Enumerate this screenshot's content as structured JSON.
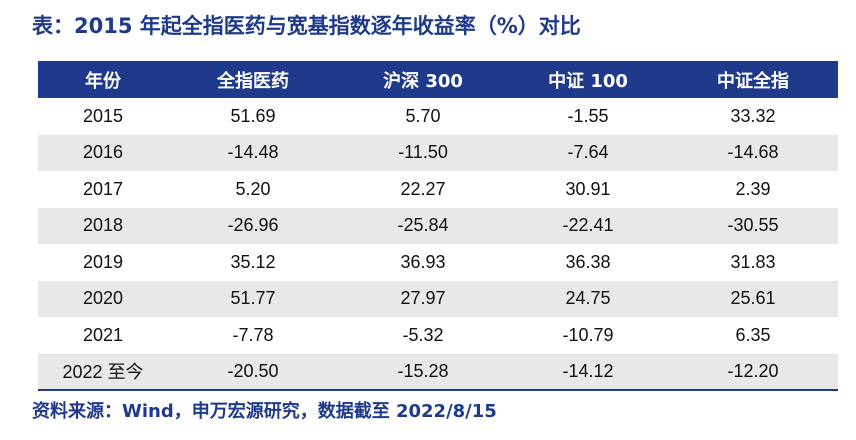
{
  "title": "表：2015 年起全指医药与宽基指数逐年收益率（%）对比",
  "table": {
    "headers": [
      "年份",
      "全指医药",
      "沪深 300",
      "中证 100",
      "中证全指"
    ],
    "rows": [
      [
        "2015",
        "51.69",
        "5.70",
        "-1.55",
        "33.32"
      ],
      [
        "2016",
        "-14.48",
        "-11.50",
        "-7.64",
        "-14.68"
      ],
      [
        "2017",
        "5.20",
        "22.27",
        "30.91",
        "2.39"
      ],
      [
        "2018",
        "-26.96",
        "-25.84",
        "-22.41",
        "-30.55"
      ],
      [
        "2019",
        "35.12",
        "36.93",
        "36.38",
        "31.83"
      ],
      [
        "2020",
        "51.77",
        "27.97",
        "24.75",
        "25.61"
      ],
      [
        "2021",
        "-7.78",
        "-5.32",
        "-10.79",
        "6.35"
      ],
      [
        "2022 至今",
        "-20.50",
        "-15.28",
        "-14.12",
        "-12.20"
      ]
    ]
  },
  "source": "资料来源：Wind，申万宏源研究，数据截至 2022/8/15",
  "colors": {
    "header_bg": "#1f3a8a",
    "title_text": "#1f3a8a",
    "shaded_row": "#e8e8e8"
  }
}
